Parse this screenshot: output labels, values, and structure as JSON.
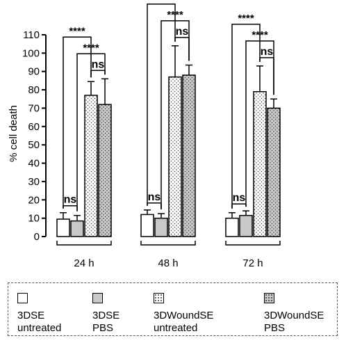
{
  "chart_data": {
    "type": "bar",
    "ylabel": "% cell death",
    "ylim": [
      0,
      110
    ],
    "yticks": [
      0,
      10,
      20,
      30,
      40,
      50,
      60,
      70,
      80,
      90,
      100,
      110
    ],
    "categories": [
      "24 h",
      "48 h",
      "72 h"
    ],
    "series": [
      {
        "name": "3DSE untreated",
        "fill": "white",
        "values": [
          9.5,
          12,
          10
        ],
        "errors": [
          3.5,
          2.5,
          3
        ]
      },
      {
        "name": "3DSE PBS",
        "fill": "gray",
        "values": [
          8.5,
          10,
          11.5
        ],
        "errors": [
          3,
          2.5,
          2.5
        ]
      },
      {
        "name": "3DWoundSE untreated",
        "fill": "white-dotted",
        "values": [
          77,
          87,
          79
        ],
        "errors": [
          7.5,
          17,
          14
        ]
      },
      {
        "name": "3DWoundSE PBS",
        "fill": "gray-dotted",
        "values": [
          72,
          88,
          70
        ],
        "errors": [
          14,
          5.5,
          5
        ]
      }
    ],
    "significance": [
      {
        "group": 0,
        "pair": [
          0,
          1
        ],
        "label": "ns"
      },
      {
        "group": 0,
        "pair": [
          0,
          2
        ],
        "label": "****"
      },
      {
        "group": 0,
        "pair": [
          1,
          3
        ],
        "label": "****"
      },
      {
        "group": 0,
        "pair": [
          2,
          3
        ],
        "label": "ns"
      },
      {
        "group": 1,
        "pair": [
          0,
          1
        ],
        "label": "ns"
      },
      {
        "group": 1,
        "pair": [
          0,
          2
        ],
        "label": "****"
      },
      {
        "group": 1,
        "pair": [
          1,
          3
        ],
        "label": "****"
      },
      {
        "group": 1,
        "pair": [
          2,
          3
        ],
        "label": "ns"
      },
      {
        "group": 2,
        "pair": [
          0,
          1
        ],
        "label": "ns"
      },
      {
        "group": 2,
        "pair": [
          0,
          2
        ],
        "label": "****"
      },
      {
        "group": 2,
        "pair": [
          1,
          3
        ],
        "label": "****"
      },
      {
        "group": 2,
        "pair": [
          2,
          3
        ],
        "label": "ns"
      }
    ],
    "legend_placement": "bottom",
    "grid": false
  },
  "legend": [
    {
      "name": "3DSE\nuntreated",
      "fill": "white"
    },
    {
      "name": "3DSE\nPBS",
      "fill": "gray"
    },
    {
      "name": "3DWoundSE\nuntreated",
      "fill": "white-dotted"
    },
    {
      "name": "3DWoundSE\nPBS",
      "fill": "gray-dotted"
    }
  ],
  "colors": {
    "bar_gray": "#c8c8c8",
    "bar_white": "#ffffff",
    "stroke": "#000000",
    "legend_border": "#555555"
  }
}
